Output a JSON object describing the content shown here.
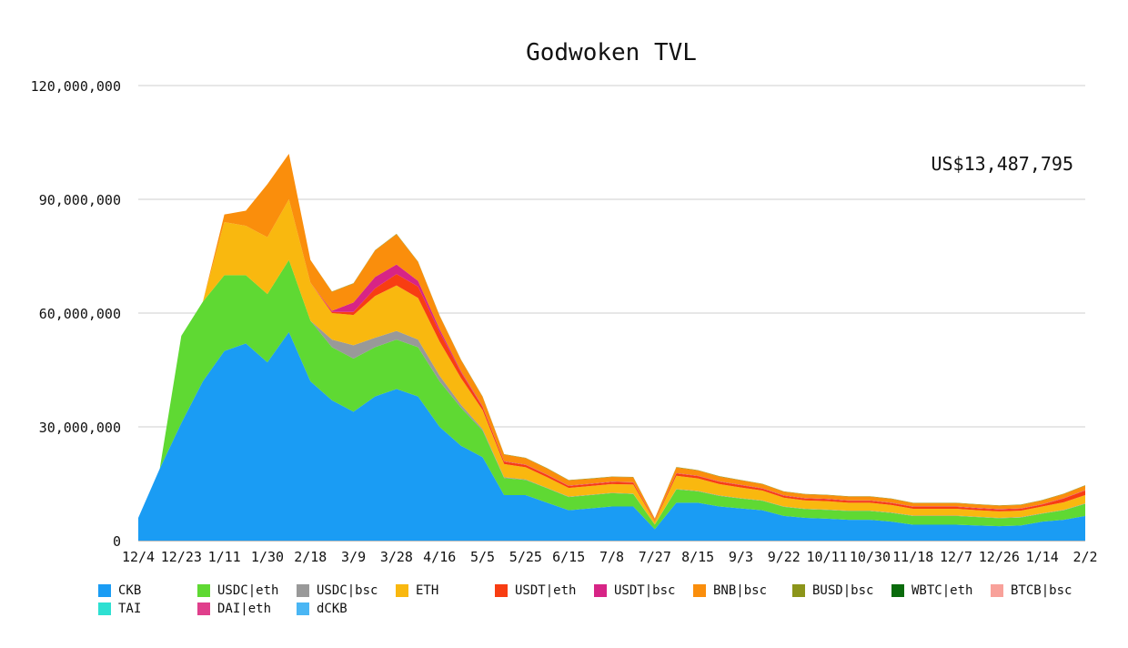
{
  "chart_data": {
    "type": "area",
    "title": "Godwoken TVL",
    "annotation": "US$13,487,795",
    "xlabel": "",
    "ylabel": "",
    "ylim": [
      0,
      120000000
    ],
    "yticks": [
      "0",
      "30,000,000",
      "60,000,000",
      "90,000,000",
      "120,000,000"
    ],
    "ytick_values": [
      0,
      30000000,
      60000000,
      90000000,
      120000000
    ],
    "xticks": [
      "12/4",
      "12/23",
      "1/11",
      "1/30",
      "2/18",
      "3/9",
      "3/28",
      "4/16",
      "5/5",
      "5/25",
      "6/15",
      "7/8",
      "7/27",
      "8/15",
      "9/3",
      "9/22",
      "10/11",
      "10/30",
      "11/18",
      "12/7",
      "12/26",
      "1/14",
      "2/2"
    ],
    "grid": true,
    "legend_position": "bottom",
    "stacked": true,
    "x": [
      "12/4",
      "12/13",
      "12/23",
      "1/1",
      "1/11",
      "1/20",
      "1/30",
      "2/8",
      "2/18",
      "2/27",
      "3/9",
      "3/18",
      "3/28",
      "4/6",
      "4/16",
      "4/25",
      "5/5",
      "5/15",
      "5/25",
      "6/4",
      "6/15",
      "6/26",
      "7/8",
      "7/17",
      "7/27",
      "8/5",
      "8/15",
      "8/24",
      "9/3",
      "9/12",
      "9/22",
      "10/1",
      "10/11",
      "10/20",
      "10/30",
      "11/8",
      "11/18",
      "11/27",
      "12/7",
      "12/16",
      "12/26",
      "1/4",
      "1/14",
      "1/24",
      "2/2"
    ],
    "series": [
      {
        "name": "CKB",
        "color": "#1a9cf4",
        "values": [
          6000000,
          19000000,
          31000000,
          42000000,
          50000000,
          52000000,
          47000000,
          55000000,
          42000000,
          37000000,
          34000000,
          38000000,
          40000000,
          38000000,
          30000000,
          25000000,
          22000000,
          12000000,
          12000000,
          10000000,
          8000000,
          8500000,
          9000000,
          9000000,
          3000000,
          10000000,
          10000000,
          9000000,
          8500000,
          8000000,
          6500000,
          6000000,
          5800000,
          5500000,
          5500000,
          5000000,
          4200000,
          4200000,
          4200000,
          4000000,
          3800000,
          4000000,
          5000000,
          5500000,
          6500000
        ]
      },
      {
        "name": "USDC|eth",
        "color": "#5fd933",
        "values": [
          0,
          0,
          23000000,
          21000000,
          20000000,
          18000000,
          18000000,
          19000000,
          16000000,
          14000000,
          14000000,
          13000000,
          13000000,
          13000000,
          12000000,
          10000000,
          7000000,
          4500000,
          4000000,
          3800000,
          3500000,
          3500000,
          3500000,
          3300000,
          1200000,
          3500000,
          3000000,
          2800000,
          2600000,
          2500000,
          2400000,
          2300000,
          2300000,
          2300000,
          2300000,
          2300000,
          2300000,
          2300000,
          2300000,
          2200000,
          2100000,
          2100000,
          2100000,
          2500000,
          3200000
        ]
      },
      {
        "name": "USDC|bsc",
        "color": "#999999",
        "values": [
          0,
          0,
          0,
          0,
          0,
          0,
          0,
          0,
          0,
          2000000,
          3500000,
          2500000,
          2300000,
          2000000,
          1500000,
          800000,
          400000,
          200000,
          150000,
          100000,
          100000,
          100000,
          100000,
          100000,
          50000,
          100000,
          100000,
          100000,
          100000,
          100000,
          100000,
          100000,
          100000,
          100000,
          100000,
          100000,
          100000,
          100000,
          100000,
          100000,
          100000,
          100000,
          100000,
          100000,
          100000
        ]
      },
      {
        "name": "ETH",
        "color": "#f9b80f",
        "values": [
          0,
          0,
          0,
          0,
          14000000,
          13000000,
          15000000,
          16000000,
          10000000,
          7000000,
          8000000,
          11000000,
          12000000,
          11000000,
          9000000,
          7000000,
          5000000,
          3500000,
          3200000,
          2800000,
          2300000,
          2300000,
          2300000,
          2400000,
          800000,
          3500000,
          3300000,
          3000000,
          2800000,
          2600000,
          2300000,
          2200000,
          2200000,
          2100000,
          2100000,
          2000000,
          1800000,
          1800000,
          1800000,
          1700000,
          1700000,
          1700000,
          1800000,
          2000000,
          2200000
        ]
      },
      {
        "name": "USDT|eth",
        "color": "#f83d12",
        "values": [
          0,
          0,
          0,
          0,
          0,
          0,
          0,
          0,
          0,
          300000,
          800000,
          2000000,
          3000000,
          3000000,
          2500000,
          1500000,
          800000,
          600000,
          600000,
          600000,
          500000,
          500000,
          500000,
          500000,
          200000,
          600000,
          600000,
          600000,
          600000,
          500000,
          500000,
          500000,
          500000,
          500000,
          500000,
          500000,
          500000,
          500000,
          500000,
          500000,
          500000,
          500000,
          500000,
          1000000,
          1200000
        ]
      },
      {
        "name": "USDT|bsc",
        "color": "#d72486",
        "values": [
          0,
          0,
          0,
          0,
          0,
          0,
          0,
          0,
          0,
          300000,
          2500000,
          3000000,
          2500000,
          1500000,
          800000,
          300000,
          200000,
          100000,
          100000,
          100000,
          100000,
          100000,
          100000,
          100000,
          50000,
          100000,
          100000,
          100000,
          100000,
          100000,
          100000,
          100000,
          100000,
          100000,
          100000,
          100000,
          100000,
          100000,
          100000,
          100000,
          100000,
          100000,
          100000,
          100000,
          100000
        ]
      },
      {
        "name": "BNB|bsc",
        "color": "#fa8e0c",
        "values": [
          0,
          0,
          0,
          0,
          2000000,
          4000000,
          14000000,
          12000000,
          6000000,
          5000000,
          5000000,
          7000000,
          8000000,
          5000000,
          3500000,
          3000000,
          2500000,
          1800000,
          1700000,
          1600000,
          1400000,
          1300000,
          1300000,
          1300000,
          500000,
          1500000,
          1400000,
          1300000,
          1200000,
          1100000,
          1000000,
          1000000,
          1000000,
          1000000,
          1000000,
          1000000,
          900000,
          900000,
          900000,
          900000,
          900000,
          900000,
          1000000,
          1100000,
          1200000
        ]
      },
      {
        "name": "BUSD|bsc",
        "color": "#8c951a",
        "values": [
          0,
          0,
          0,
          0,
          0,
          0,
          0,
          0,
          0,
          100000,
          100000,
          100000,
          100000,
          100000,
          100000,
          100000,
          100000,
          100000,
          100000,
          100000,
          100000,
          100000,
          100000,
          100000,
          50000,
          100000,
          100000,
          100000,
          100000,
          100000,
          100000,
          100000,
          100000,
          100000,
          100000,
          100000,
          100000,
          100000,
          100000,
          100000,
          100000,
          100000,
          100000,
          100000,
          100000
        ]
      },
      {
        "name": "WBTC|eth",
        "color": "#0a6b0c",
        "values": [
          0,
          0,
          0,
          0,
          0,
          0,
          0,
          0,
          0,
          0,
          0,
          0,
          0,
          0,
          0,
          0,
          0,
          0,
          0,
          0,
          0,
          0,
          0,
          0,
          0,
          0,
          0,
          0,
          0,
          0,
          0,
          0,
          0,
          0,
          0,
          0,
          0,
          0,
          0,
          0,
          0,
          0,
          0,
          0,
          0
        ]
      },
      {
        "name": "BTCB|bsc",
        "color": "#f8a19a",
        "values": [
          0,
          0,
          0,
          0,
          0,
          0,
          0,
          0,
          0,
          0,
          0,
          0,
          0,
          0,
          0,
          0,
          0,
          0,
          0,
          0,
          0,
          0,
          0,
          0,
          0,
          0,
          0,
          0,
          0,
          0,
          0,
          0,
          0,
          0,
          0,
          0,
          0,
          0,
          0,
          0,
          0,
          0,
          0,
          0,
          0
        ]
      },
      {
        "name": "TAI",
        "color": "#2ee0d2",
        "values": [
          0,
          0,
          0,
          0,
          0,
          0,
          0,
          0,
          0,
          0,
          0,
          0,
          0,
          0,
          0,
          0,
          0,
          0,
          0,
          0,
          0,
          0,
          0,
          0,
          0,
          0,
          0,
          0,
          0,
          0,
          0,
          0,
          0,
          0,
          0,
          0,
          0,
          0,
          0,
          0,
          0,
          0,
          0,
          0,
          0
        ]
      },
      {
        "name": "DAI|eth",
        "color": "#e03f8c",
        "values": [
          0,
          0,
          0,
          0,
          0,
          0,
          0,
          0,
          0,
          0,
          0,
          0,
          0,
          0,
          0,
          0,
          0,
          0,
          0,
          0,
          0,
          0,
          0,
          0,
          0,
          0,
          0,
          0,
          0,
          0,
          0,
          0,
          0,
          0,
          0,
          0,
          0,
          0,
          0,
          0,
          0,
          0,
          0,
          0,
          0
        ]
      },
      {
        "name": "dCKB",
        "color": "#4ab6f4",
        "values": [
          0,
          0,
          0,
          0,
          0,
          0,
          0,
          0,
          0,
          0,
          0,
          0,
          0,
          0,
          0,
          0,
          0,
          0,
          0,
          0,
          0,
          0,
          0,
          0,
          0,
          0,
          0,
          0,
          0,
          0,
          0,
          0,
          0,
          0,
          0,
          0,
          0,
          0,
          0,
          0,
          0,
          0,
          0,
          0,
          0
        ]
      }
    ]
  }
}
